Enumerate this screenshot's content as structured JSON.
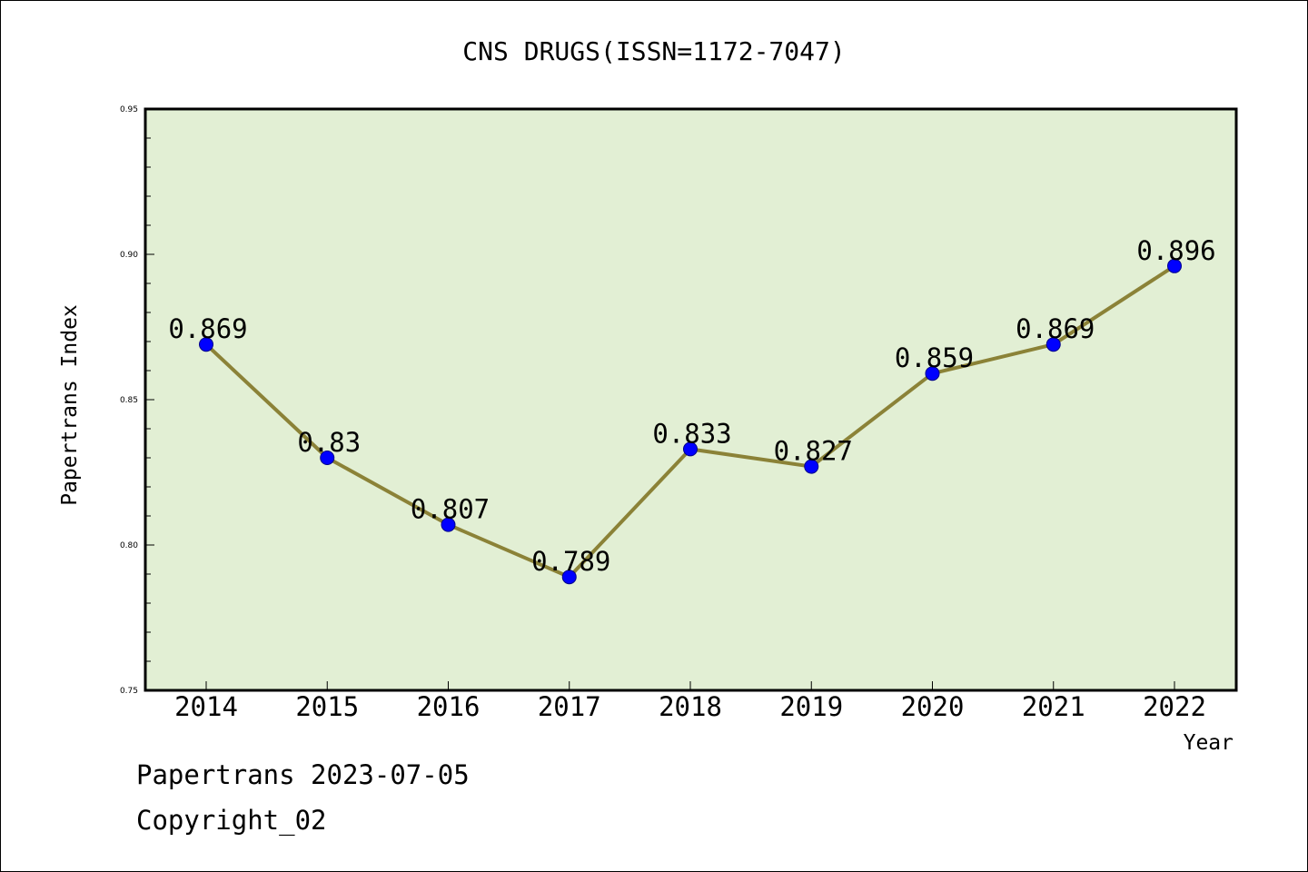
{
  "chart_data": {
    "type": "line",
    "title": "CNS DRUGS(ISSN=1172-7047)",
    "xlabel": "Year",
    "ylabel": "Papertrans Index",
    "categories": [
      "2014",
      "2015",
      "2016",
      "2017",
      "2018",
      "2019",
      "2020",
      "2021",
      "2022"
    ],
    "values": [
      0.869,
      0.83,
      0.807,
      0.789,
      0.833,
      0.827,
      0.859,
      0.869,
      0.896
    ],
    "data_labels": [
      "0.869",
      "0.83",
      "0.807",
      "0.789",
      "0.833",
      "0.827",
      "0.859",
      "0.869",
      "0.896"
    ],
    "ylim": [
      0.75,
      0.95
    ],
    "y_ticks": [
      0.75,
      0.8,
      0.85,
      0.9,
      0.95
    ],
    "y_tick_labels": [
      "0.75",
      "0.80",
      "0.85",
      "0.90",
      "0.95"
    ],
    "grid": false,
    "colors": {
      "plot_background": "#e2efd4",
      "line": "#8b8237",
      "marker": "#0000ff"
    }
  },
  "footer": {
    "line1": "Papertrans 2023-07-05",
    "line2": "Copyright_02"
  }
}
